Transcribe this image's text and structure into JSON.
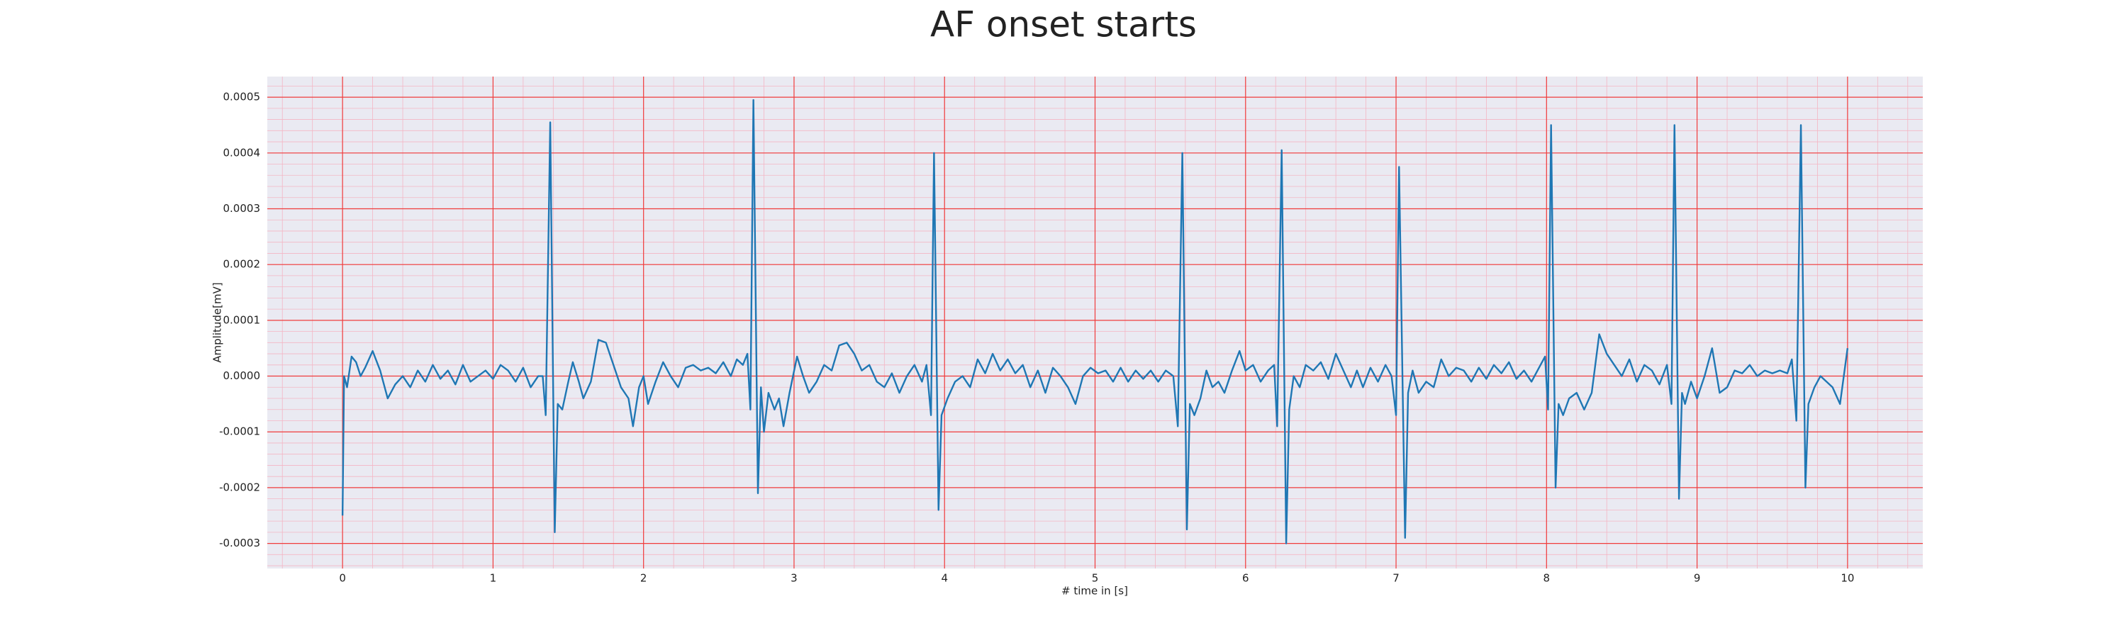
{
  "chart_data": {
    "type": "line",
    "title": "AF onset starts",
    "xlabel": "# time in [s]",
    "ylabel": "Amplitude[mV]",
    "color": "#1f77b4",
    "background": "#eaeaf2",
    "grid": true,
    "grid_color": "#f03c3c",
    "minor_grid_color": "#f4b6c4",
    "minor_divisions": 5,
    "xlim": [
      -0.5,
      10.5
    ],
    "ylim": [
      -0.000345,
      0.000537
    ],
    "xticks": [
      0,
      1,
      2,
      3,
      4,
      5,
      6,
      7,
      8,
      9,
      10
    ],
    "yticks": [
      -0.0003,
      -0.0002,
      -0.0001,
      {
        "value": 0,
        "label": "0.0000"
      },
      0.0001,
      0.0002,
      0.0003,
      0.0004,
      0.0005
    ],
    "x": [
      0,
      0.01,
      0.03,
      0.06,
      0.09,
      0.12,
      0.15,
      0.2,
      0.25,
      0.3,
      0.35,
      0.4,
      0.45,
      0.5,
      0.55,
      0.6,
      0.65,
      0.7,
      0.75,
      0.8,
      0.85,
      0.9,
      0.95,
      1.0,
      1.05,
      1.1,
      1.15,
      1.2,
      1.25,
      1.3,
      1.33,
      1.35,
      1.38,
      1.41,
      1.43,
      1.46,
      1.5,
      1.53,
      1.57,
      1.6,
      1.65,
      1.7,
      1.75,
      1.8,
      1.85,
      1.9,
      1.93,
      1.97,
      2.0,
      2.03,
      2.08,
      2.13,
      2.18,
      2.23,
      2.28,
      2.33,
      2.38,
      2.43,
      2.48,
      2.53,
      2.58,
      2.62,
      2.66,
      2.69,
      2.71,
      2.73,
      2.76,
      2.78,
      2.8,
      2.83,
      2.87,
      2.9,
      2.93,
      2.97,
      3.02,
      3.06,
      3.1,
      3.15,
      3.2,
      3.25,
      3.3,
      3.35,
      3.4,
      3.45,
      3.5,
      3.55,
      3.6,
      3.65,
      3.7,
      3.75,
      3.8,
      3.85,
      3.88,
      3.91,
      3.93,
      3.96,
      3.98,
      4.02,
      4.07,
      4.12,
      4.17,
      4.22,
      4.27,
      4.32,
      4.37,
      4.42,
      4.47,
      4.52,
      4.57,
      4.62,
      4.67,
      4.72,
      4.77,
      4.82,
      4.87,
      4.92,
      4.97,
      5.02,
      5.07,
      5.12,
      5.17,
      5.22,
      5.27,
      5.32,
      5.37,
      5.42,
      5.47,
      5.52,
      5.55,
      5.58,
      5.61,
      5.63,
      5.66,
      5.7,
      5.74,
      5.78,
      5.82,
      5.86,
      5.91,
      5.96,
      6.0,
      6.05,
      6.1,
      6.15,
      6.19,
      6.21,
      6.24,
      6.27,
      6.29,
      6.32,
      6.36,
      6.4,
      6.45,
      6.5,
      6.55,
      6.6,
      6.65,
      6.7,
      6.74,
      6.78,
      6.83,
      6.88,
      6.93,
      6.97,
      7.0,
      7.02,
      7.06,
      7.08,
      7.11,
      7.15,
      7.2,
      7.25,
      7.3,
      7.35,
      7.4,
      7.45,
      7.5,
      7.55,
      7.6,
      7.65,
      7.7,
      7.75,
      7.8,
      7.85,
      7.9,
      7.95,
      7.99,
      8.01,
      8.03,
      8.06,
      8.08,
      8.11,
      8.15,
      8.2,
      8.25,
      8.3,
      8.35,
      8.4,
      8.45,
      8.5,
      8.55,
      8.6,
      8.65,
      8.7,
      8.75,
      8.8,
      8.83,
      8.85,
      8.88,
      8.9,
      8.92,
      8.96,
      9.0,
      9.05,
      9.1,
      9.15,
      9.2,
      9.25,
      9.3,
      9.35,
      9.4,
      9.45,
      9.5,
      9.55,
      9.6,
      9.63,
      9.66,
      9.69,
      9.72,
      9.74,
      9.78,
      9.82,
      9.86,
      9.9,
      9.95,
      10.0
    ],
    "values": [
      -0.00025,
      0,
      -2e-05,
      3.5e-05,
      2.5e-05,
      0,
      1.5e-05,
      4.5e-05,
      1e-05,
      -4e-05,
      -1.5e-05,
      0,
      -2e-05,
      1e-05,
      -1e-05,
      2e-05,
      -5e-06,
      1e-05,
      -1.5e-05,
      2e-05,
      -1e-05,
      0,
      1e-05,
      -5e-06,
      2e-05,
      1e-05,
      -1e-05,
      1.5e-05,
      -2e-05,
      0,
      0,
      -7e-05,
      0.000455,
      -0.00028,
      -5e-05,
      -6e-05,
      -1e-05,
      2.5e-05,
      -1e-05,
      -4e-05,
      -1e-05,
      6.5e-05,
      6e-05,
      2e-05,
      -2e-05,
      -4e-05,
      -9e-05,
      -2e-05,
      0,
      -5e-05,
      -1e-05,
      2.5e-05,
      0,
      -2e-05,
      1.5e-05,
      2e-05,
      1e-05,
      1.5e-05,
      5e-06,
      2.5e-05,
      0,
      3e-05,
      2e-05,
      4e-05,
      -6e-05,
      0.000495,
      -0.00021,
      -2e-05,
      -0.0001,
      -3e-05,
      -6e-05,
      -4e-05,
      -9e-05,
      -3e-05,
      3.5e-05,
      0,
      -3e-05,
      -1e-05,
      2e-05,
      1e-05,
      5.5e-05,
      6e-05,
      4e-05,
      1e-05,
      2e-05,
      -1e-05,
      -2e-05,
      5e-06,
      -3e-05,
      0,
      2e-05,
      -1e-05,
      2e-05,
      -7e-05,
      0.0004,
      -0.00024,
      -7e-05,
      -4e-05,
      -1e-05,
      0,
      -2e-05,
      3e-05,
      5e-06,
      4e-05,
      1e-05,
      3e-05,
      5e-06,
      2e-05,
      -2e-05,
      1e-05,
      -3e-05,
      1.5e-05,
      0,
      -2e-05,
      -5e-05,
      0,
      1.5e-05,
      5e-06,
      1e-05,
      -1e-05,
      1.5e-05,
      -1e-05,
      1e-05,
      -5e-06,
      1e-05,
      -1e-05,
      1e-05,
      0,
      -9e-05,
      0.0004,
      -0.000275,
      -5e-05,
      -7e-05,
      -4e-05,
      1e-05,
      -2e-05,
      -1e-05,
      -3e-05,
      1e-05,
      4.5e-05,
      1e-05,
      2e-05,
      -1e-05,
      1e-05,
      2e-05,
      -9e-05,
      0.000405,
      -0.0003,
      -6e-05,
      0,
      -2e-05,
      2e-05,
      1e-05,
      2.5e-05,
      -5e-06,
      4e-05,
      1e-05,
      -2e-05,
      1e-05,
      -2e-05,
      1.5e-05,
      -1e-05,
      2e-05,
      0,
      -7e-05,
      0.000375,
      -0.00029,
      -3e-05,
      1e-05,
      -3e-05,
      -1e-05,
      -2e-05,
      3e-05,
      0,
      1.5e-05,
      1e-05,
      -1e-05,
      1.5e-05,
      -5e-06,
      2e-05,
      5e-06,
      2.5e-05,
      -5e-06,
      1e-05,
      -1e-05,
      1.5e-05,
      3.5e-05,
      -6e-05,
      0.00045,
      -0.0002,
      -5e-05,
      -7e-05,
      -4e-05,
      -3e-05,
      -6e-05,
      -3e-05,
      7.5e-05,
      4e-05,
      2e-05,
      0,
      3e-05,
      -1e-05,
      2e-05,
      1e-05,
      -1.5e-05,
      2e-05,
      -5e-05,
      0.00045,
      -0.00022,
      -3e-05,
      -5e-05,
      -1e-05,
      -4e-05,
      0,
      5e-05,
      -3e-05,
      -2e-05,
      1e-05,
      5e-06,
      2e-05,
      0,
      1e-05,
      5e-06,
      1e-05,
      5e-06,
      3e-05,
      -8e-05,
      0.00045,
      -0.0002,
      -5e-05,
      -2e-05,
      0,
      -1e-05,
      -2e-05,
      -5e-05,
      5e-05
    ]
  }
}
